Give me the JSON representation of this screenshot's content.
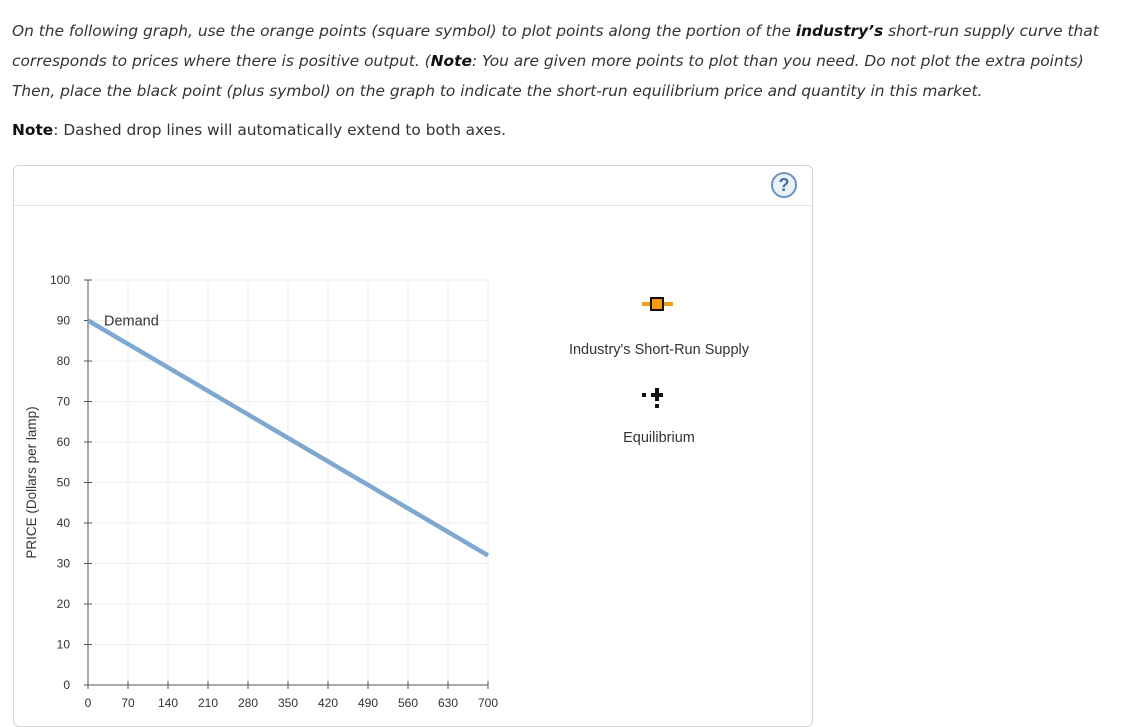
{
  "instructions": {
    "part1": "On the following graph, use the orange points (square symbol) to plot points along the portion of the ",
    "bold1": "industry’s",
    "part2": " short-run supply curve that corresponds to prices where there is positive output. (",
    "bold2": "Note",
    "part3": ": You are given more points to plot than you need. Do not plot the extra points) Then, place the black point (plus symbol) on the graph to indicate the short-run equilibrium price and quantity in this market."
  },
  "note": {
    "label": "Note",
    "text": ": Dashed drop lines will automatically extend to both axes."
  },
  "help": {
    "symbol": "?",
    "icon": "question-circle-icon"
  },
  "legend": {
    "supply": {
      "label": "Industry's Short-Run Supply",
      "color": "#f59d0f",
      "marker_fill": "#f59d0f",
      "marker_border": "#111111",
      "icon": "orange-square-point-icon"
    },
    "equilibrium": {
      "label": "Equilibrium",
      "color": "#111111",
      "icon": "black-plus-point-icon"
    }
  },
  "chart_data": {
    "type": "line",
    "ylabel": "PRICE (Dollars per lamp)",
    "xlabel": "",
    "xlim": [
      0,
      700
    ],
    "ylim": [
      0,
      100
    ],
    "x_ticks": [
      0,
      70,
      140,
      210,
      280,
      350,
      420,
      490,
      560,
      630,
      700
    ],
    "y_ticks": [
      0,
      10,
      20,
      30,
      40,
      50,
      60,
      70,
      80,
      90,
      100
    ],
    "grid": true,
    "series": [
      {
        "name": "Demand",
        "color": "#7fa8d1",
        "x": [
          0,
          700
        ],
        "y": [
          90,
          32
        ]
      }
    ]
  }
}
